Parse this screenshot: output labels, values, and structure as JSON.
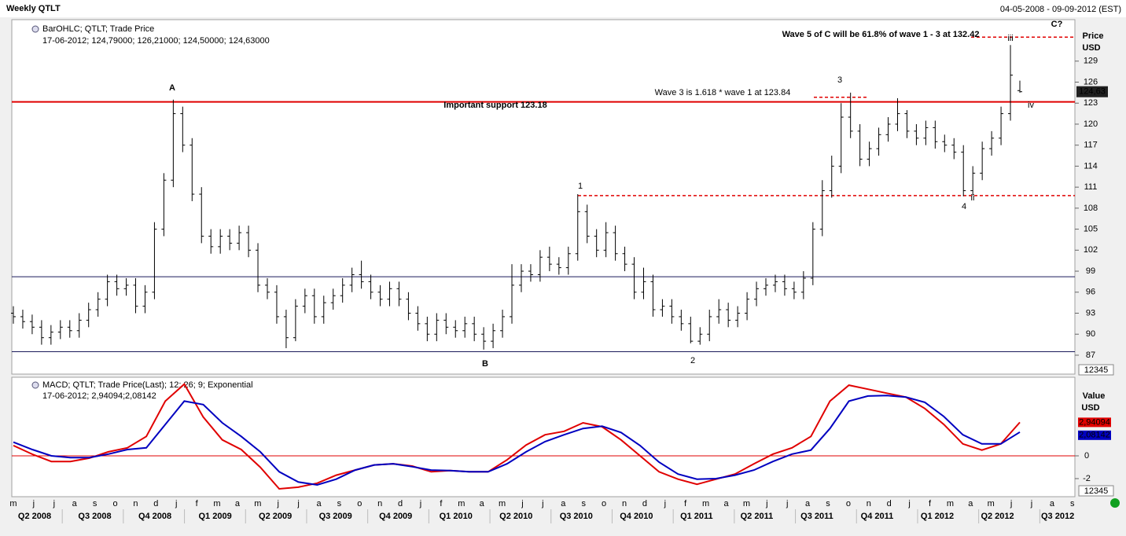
{
  "header": {
    "title": "Weekly QTLT",
    "range": "04-05-2008 - 09-09-2012 (EST)"
  },
  "x_axis": {
    "months": [
      "m",
      "j",
      "j",
      "a",
      "s",
      "o",
      "n",
      "d",
      "j",
      "f",
      "m",
      "a",
      "m",
      "j",
      "j",
      "a",
      "s",
      "o",
      "n",
      "d",
      "j",
      "f",
      "m",
      "a",
      "m",
      "j",
      "j",
      "a",
      "s",
      "o",
      "n",
      "d",
      "j",
      "f",
      "m",
      "a",
      "m",
      "j",
      "j",
      "a",
      "s",
      "o",
      "n",
      "d",
      "j",
      "f",
      "m",
      "a",
      "m",
      "j",
      "j",
      "a",
      "s"
    ],
    "quarters": [
      "Q2 2008",
      "Q3 2008",
      "Q4 2008",
      "Q1 2009",
      "Q2 2009",
      "Q3 2009",
      "Q4 2009",
      "Q1 2010",
      "Q2 2010",
      "Q3 2010",
      "Q4 2010",
      "Q1 2011",
      "Q2 2011",
      "Q3 2011",
      "Q4 2011",
      "Q1 2012",
      "Q2 2012",
      "Q3 2012"
    ]
  },
  "chart_data": [
    {
      "type": "ohlc",
      "legend": [
        "BarOHLC; QTLT; Trade Price",
        "17-06-2012; 124,79000; 126,21000; 124,50000; 124,63000"
      ],
      "axis_label": [
        "Price",
        "USD"
      ],
      "color": "#000000",
      "ylim": [
        84.3,
        134.7
      ],
      "yticks": [
        87,
        90,
        93,
        96,
        99,
        102,
        105,
        108,
        111,
        114,
        117,
        120,
        123,
        126,
        129
      ],
      "open": [
        93.0,
        92.5,
        91.8,
        91.0,
        89.5,
        90.3,
        91.0,
        90.5,
        92.0,
        93.5,
        95.0,
        97.5,
        96.5,
        97.0,
        94.0,
        96.0,
        105.0,
        112.0,
        121.5,
        117.0,
        110.0,
        104.0,
        102.5,
        104.0,
        103.0,
        104.5,
        102.0,
        97.0,
        96.0,
        92.5,
        89.5,
        94.0,
        95.5,
        92.5,
        94.5,
        95.5,
        97.0,
        98.5,
        97.5,
        96.0,
        95.0,
        96.5,
        95.0,
        93.0,
        91.5,
        90.0,
        92.0,
        91.0,
        90.5,
        91.5,
        90.0,
        89.0,
        90.5,
        92.5,
        97.0,
        99.0,
        98.5,
        101.0,
        100.0,
        99.5,
        101.5,
        107.5,
        104.0,
        102.0,
        104.5,
        101.5,
        100.0,
        96.0,
        97.5,
        93.5,
        94.0,
        92.5,
        91.5,
        89.0,
        90.0,
        92.5,
        93.5,
        92.0,
        93.0,
        95.0,
        96.5,
        97.0,
        97.5,
        96.5,
        96.0,
        98.0,
        105.0,
        110.5,
        114.0,
        121.0,
        119.0,
        115.0,
        116.5,
        118.5,
        120.0,
        121.5,
        119.0,
        118.0,
        119.5,
        117.5,
        117.0,
        116.0,
        110.5,
        113.0,
        116.5,
        118.0,
        121.5,
        124.79
      ],
      "high": [
        94.0,
        93.5,
        92.8,
        92.0,
        91.3,
        92.0,
        92.0,
        93.0,
        94.5,
        96.0,
        98.5,
        98.5,
        98.0,
        98.0,
        97.0,
        106.0,
        113.0,
        123.5,
        122.5,
        118.0,
        111.0,
        105.0,
        105.0,
        105.0,
        105.5,
        105.5,
        103.0,
        98.0,
        97.0,
        93.5,
        95.0,
        96.5,
        96.5,
        95.5,
        96.5,
        98.0,
        99.5,
        100.5,
        98.5,
        97.0,
        97.5,
        97.5,
        96.0,
        94.0,
        92.5,
        93.0,
        93.0,
        92.0,
        92.5,
        92.5,
        91.0,
        91.5,
        93.5,
        100.0,
        100.0,
        100.0,
        102.0,
        102.5,
        101.0,
        102.5,
        110.0,
        108.5,
        105.0,
        106.0,
        105.5,
        102.5,
        101.0,
        99.5,
        98.5,
        95.0,
        95.0,
        93.5,
        92.5,
        91.0,
        93.5,
        95.0,
        94.5,
        94.0,
        96.0,
        97.5,
        98.0,
        98.5,
        98.5,
        97.5,
        99.0,
        106.0,
        112.0,
        115.5,
        123.0,
        124.5,
        120.0,
        117.5,
        119.5,
        121.0,
        123.7,
        122.0,
        120.0,
        120.5,
        120.5,
        118.5,
        118.0,
        117.0,
        114.0,
        117.5,
        119.0,
        122.5,
        131.3,
        126.21
      ],
      "low": [
        91.5,
        90.8,
        90.0,
        88.5,
        88.5,
        89.3,
        89.5,
        89.5,
        91.0,
        92.5,
        94.0,
        95.5,
        95.5,
        93.0,
        93.0,
        95.0,
        104.0,
        111.0,
        116.0,
        109.0,
        103.0,
        101.5,
        101.5,
        102.0,
        102.0,
        101.0,
        96.0,
        95.0,
        91.5,
        88.0,
        89.0,
        93.0,
        91.5,
        91.5,
        93.5,
        94.5,
        96.0,
        96.5,
        95.0,
        94.0,
        94.0,
        94.0,
        92.0,
        90.5,
        89.0,
        89.0,
        90.0,
        89.5,
        89.5,
        89.0,
        87.8,
        88.0,
        89.5,
        91.5,
        96.0,
        97.5,
        97.5,
        99.0,
        98.5,
        98.5,
        100.5,
        103.0,
        101.0,
        101.0,
        100.5,
        99.0,
        95.0,
        95.0,
        92.5,
        92.5,
        91.5,
        90.5,
        88.7,
        88.5,
        89.0,
        91.5,
        91.0,
        91.0,
        92.0,
        94.0,
        95.5,
        96.0,
        95.5,
        95.0,
        95.0,
        97.0,
        104.0,
        109.5,
        113.0,
        118.0,
        114.0,
        114.0,
        115.5,
        117.5,
        119.0,
        118.0,
        117.0,
        117.0,
        116.5,
        116.0,
        115.0,
        109.7,
        109.8,
        112.0,
        115.5,
        117.0,
        120.5,
        124.5
      ],
      "close": [
        92.5,
        91.8,
        91.0,
        89.5,
        90.3,
        91.0,
        90.5,
        92.0,
        93.5,
        95.0,
        97.5,
        96.5,
        97.0,
        94.0,
        96.0,
        105.0,
        112.0,
        121.5,
        117.0,
        110.0,
        104.0,
        102.5,
        104.0,
        103.0,
        104.5,
        102.0,
        97.0,
        96.0,
        92.5,
        89.5,
        94.0,
        95.5,
        92.5,
        94.5,
        95.5,
        97.0,
        98.5,
        97.5,
        96.0,
        95.0,
        96.5,
        95.0,
        93.0,
        91.5,
        90.0,
        92.0,
        91.0,
        90.5,
        91.5,
        90.0,
        89.0,
        90.5,
        92.5,
        97.0,
        99.0,
        98.5,
        101.0,
        100.0,
        99.5,
        101.5,
        107.5,
        104.0,
        102.0,
        104.5,
        101.5,
        100.0,
        96.0,
        97.5,
        93.5,
        94.0,
        92.5,
        91.5,
        89.0,
        90.0,
        92.5,
        93.5,
        92.0,
        93.0,
        95.0,
        96.5,
        97.0,
        97.5,
        96.5,
        96.0,
        98.0,
        105.0,
        110.5,
        114.0,
        121.0,
        119.0,
        115.0,
        116.5,
        118.5,
        120.0,
        121.5,
        119.0,
        118.0,
        119.5,
        117.5,
        117.0,
        116.0,
        110.5,
        113.0,
        116.5,
        118.0,
        121.5,
        127.0,
        124.63
      ],
      "levels": [
        {
          "value": 123.18,
          "color": "#e00000",
          "style": "solid"
        },
        {
          "value": 98.2,
          "color": "#1a1a5a",
          "style": "solid"
        },
        {
          "value": 87.5,
          "color": "#1a1a5a",
          "style": "solid"
        },
        {
          "value": 109.8,
          "color": "#e00000",
          "style": "dashed"
        },
        {
          "value": 132.42,
          "color": "#e00000",
          "style": "dashed"
        },
        {
          "value": 123.84,
          "color": "#e00000",
          "style": "dashed"
        }
      ],
      "annotations": [
        "A",
        "B",
        "1",
        "2",
        "3",
        "4",
        "ii",
        "iii",
        "iv",
        "C?",
        "Important support 123.18",
        "Wave 3 is 1.618 * wave 1 at 123.84",
        "Wave 5 of C will be 61.8% of wave 1 - 3 at 132.42"
      ],
      "last_price": {
        "value": 124.63,
        "label": "124,63"
      },
      "scale_label": "12345"
    },
    {
      "type": "line",
      "legend": [
        "MACD; QTLT; Trade Price(Last); 12; 26; 9; Exponential",
        "17-06-2012; 2,94094;",
        "2,08142"
      ],
      "axis_label": [
        "Value",
        "USD"
      ],
      "ylim": [
        -3.45,
        6.76
      ],
      "yticks": [
        -2,
        0
      ],
      "zero_color": "#e00000",
      "series": [
        {
          "color": "#e00000",
          "values": [
            0.9,
            0.14,
            -0.5,
            -0.5,
            -0.2,
            0.35,
            0.7,
            1.7,
            4.8,
            6.3,
            3.4,
            1.4,
            0.55,
            -1.0,
            -2.9,
            -2.75,
            -2.4,
            -1.7,
            -1.25,
            -0.8,
            -0.7,
            -0.9,
            -1.4,
            -1.3,
            -1.4,
            -1.4,
            -0.35,
            0.95,
            1.85,
            2.15,
            2.9,
            2.55,
            1.4,
            0,
            -1.4,
            -2.05,
            -2.5,
            -2.05,
            -1.6,
            -0.7,
            0.15,
            0.7,
            1.7,
            4.8,
            6.2,
            5.85,
            5.5,
            5.15,
            4.15,
            2.75,
            1.05,
            0.5,
            1.05,
            2.94094
          ]
        },
        {
          "color": "#0000c0",
          "values": [
            1.2,
            0.55,
            0,
            -0.15,
            -0.15,
            0.15,
            0.55,
            0.7,
            2.75,
            4.8,
            4.5,
            2.9,
            1.7,
            0.35,
            -1.4,
            -2.3,
            -2.55,
            -2.05,
            -1.25,
            -0.8,
            -0.7,
            -0.95,
            -1.25,
            -1.3,
            -1.4,
            -1.4,
            -0.7,
            0.35,
            1.25,
            1.85,
            2.4,
            2.6,
            2.05,
            0.9,
            -0.55,
            -1.6,
            -2.05,
            -2.0,
            -1.7,
            -1.25,
            -0.5,
            0.15,
            0.5,
            2.4,
            4.8,
            5.25,
            5.3,
            5.15,
            4.7,
            3.45,
            1.85,
            1.05,
            1.05,
            2.08142
          ]
        }
      ],
      "last_labels": [
        {
          "value": 2.94094,
          "label": "2,94094"
        },
        {
          "value": 2.08142,
          "label": "2,08142"
        }
      ],
      "scale_label": "12345"
    }
  ]
}
